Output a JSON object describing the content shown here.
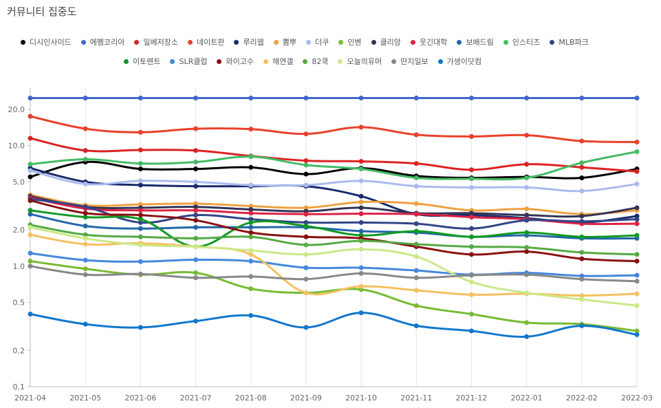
{
  "title": "커뮤니티 집중도",
  "chart_data": {
    "type": "line",
    "title": "커뮤니티 집중도",
    "y_scale": "log",
    "ylim": [
      0.1,
      30
    ],
    "yticks": [
      0.1,
      0.2,
      0.5,
      1.0,
      2.0,
      5.0,
      10.0,
      20.0
    ],
    "ytick_labels": [
      "0.1",
      "0.2",
      "0.5",
      "1.0",
      "2.0",
      "5.0",
      "10.0",
      "20.0"
    ],
    "grid": "vertical",
    "legend_position": "top",
    "categories": [
      "2021-04",
      "2021-05",
      "2021-06",
      "2021-07",
      "2021-08",
      "2021-09",
      "2021-10",
      "2021-11",
      "2021-12",
      "2022-01",
      "2022-02",
      "2022-03"
    ],
    "series": [
      {
        "name": "디시인사이드",
        "color": "#000000",
        "values": [
          5.5,
          7.3,
          6.4,
          6.4,
          6.6,
          5.8,
          6.5,
          5.6,
          5.4,
          5.5,
          5.4,
          6.4
        ]
      },
      {
        "name": "에펨코리아",
        "color": "#4466cc",
        "values": [
          24.8,
          24.8,
          24.8,
          24.8,
          24.8,
          24.8,
          24.8,
          24.8,
          24.8,
          24.8,
          24.8,
          24.8
        ]
      },
      {
        "name": "일베저장소",
        "color": "#dd2222",
        "values": [
          11.5,
          9.1,
          9.2,
          9.1,
          8.2,
          7.5,
          7.4,
          7.1,
          6.3,
          7.0,
          6.6,
          6.1
        ]
      },
      {
        "name": "네이트판",
        "color": "#e8412c",
        "values": [
          17.5,
          13.8,
          12.9,
          13.8,
          13.7,
          12.5,
          14.2,
          12.3,
          11.9,
          12.2,
          10.9,
          10.7
        ]
      },
      {
        "name": "루리웹",
        "color": "#1a2a6c",
        "values": [
          6.5,
          5.0,
          4.7,
          4.6,
          4.6,
          4.6,
          3.8,
          2.7,
          2.65,
          2.5,
          2.3,
          2.6
        ]
      },
      {
        "name": "뽐뿌",
        "color": "#f0a040",
        "values": [
          3.9,
          3.2,
          3.25,
          3.3,
          3.15,
          3.05,
          3.4,
          3.3,
          2.9,
          2.98,
          2.7,
          2.9
        ]
      },
      {
        "name": "더쿠",
        "color": "#aabbee",
        "values": [
          6.2,
          4.8,
          5.1,
          5.0,
          4.7,
          4.7,
          5.1,
          4.6,
          4.5,
          4.5,
          4.2,
          4.8
        ]
      },
      {
        "name": "인벤",
        "color": "#77bb33",
        "values": [
          1.1,
          0.95,
          0.85,
          0.88,
          0.65,
          0.6,
          0.64,
          0.47,
          0.4,
          0.34,
          0.33,
          0.29
        ]
      },
      {
        "name": "클리앙",
        "color": "#333355",
        "values": [
          3.8,
          3.1,
          3.05,
          3.1,
          2.95,
          2.85,
          3.05,
          2.75,
          2.75,
          2.65,
          2.6,
          3.05
        ]
      },
      {
        "name": "웃긴대학",
        "color": "#dd2244",
        "values": [
          3.7,
          3.0,
          2.9,
          2.9,
          2.75,
          2.7,
          2.72,
          2.7,
          2.55,
          2.45,
          2.25,
          2.25
        ]
      },
      {
        "name": "보배드림",
        "color": "#2266aa",
        "values": [
          2.7,
          2.15,
          2.05,
          2.1,
          2.1,
          2.1,
          1.95,
          1.9,
          1.75,
          1.8,
          1.7,
          1.7
        ]
      },
      {
        "name": "인스티즈",
        "color": "#44bb66",
        "values": [
          7.0,
          7.7,
          7.1,
          7.3,
          8.1,
          6.9,
          6.4,
          5.4,
          5.3,
          5.4,
          7.2,
          8.9
        ]
      },
      {
        "name": "MLB파크",
        "color": "#334488",
        "values": [
          3.6,
          3.1,
          2.3,
          2.65,
          2.45,
          2.3,
          2.3,
          2.25,
          2.05,
          2.4,
          2.35,
          2.45
        ]
      },
      {
        "name": "이토렌트",
        "color": "#119922",
        "values": [
          2.9,
          2.55,
          2.45,
          1.45,
          2.3,
          2.15,
          1.8,
          1.95,
          1.75,
          1.9,
          1.75,
          1.8
        ]
      },
      {
        "name": "SLR클럽",
        "color": "#4488dd",
        "values": [
          1.28,
          1.12,
          1.09,
          1.13,
          1.1,
          0.97,
          0.97,
          0.92,
          0.85,
          0.88,
          0.83,
          0.84
        ]
      },
      {
        "name": "와이고수",
        "color": "#881111",
        "values": [
          3.5,
          2.75,
          2.65,
          2.4,
          1.9,
          1.75,
          1.7,
          1.45,
          1.25,
          1.32,
          1.15,
          1.1
        ]
      },
      {
        "name": "해연갤",
        "color": "#f5c060",
        "values": [
          1.82,
          1.52,
          1.55,
          1.45,
          1.25,
          0.6,
          0.68,
          0.63,
          0.58,
          0.59,
          0.57,
          0.59
        ]
      },
      {
        "name": "82쿡",
        "color": "#55aa44",
        "values": [
          2.2,
          1.82,
          1.75,
          1.7,
          1.75,
          1.5,
          1.62,
          1.52,
          1.45,
          1.43,
          1.3,
          1.25
        ]
      },
      {
        "name": "오늘의유머",
        "color": "#cce888",
        "values": [
          2.1,
          1.7,
          1.5,
          1.45,
          1.35,
          1.25,
          1.38,
          1.2,
          0.74,
          0.6,
          0.53,
          0.47
        ]
      },
      {
        "name": "딴지일보",
        "color": "#888888",
        "values": [
          1.0,
          0.85,
          0.86,
          0.8,
          0.82,
          0.78,
          0.87,
          0.8,
          0.84,
          0.85,
          0.78,
          0.75
        ]
      },
      {
        "name": "가생이닷컴",
        "color": "#1177cc",
        "values": [
          0.4,
          0.33,
          0.31,
          0.35,
          0.39,
          0.31,
          0.41,
          0.32,
          0.29,
          0.26,
          0.32,
          0.27
        ]
      }
    ]
  }
}
